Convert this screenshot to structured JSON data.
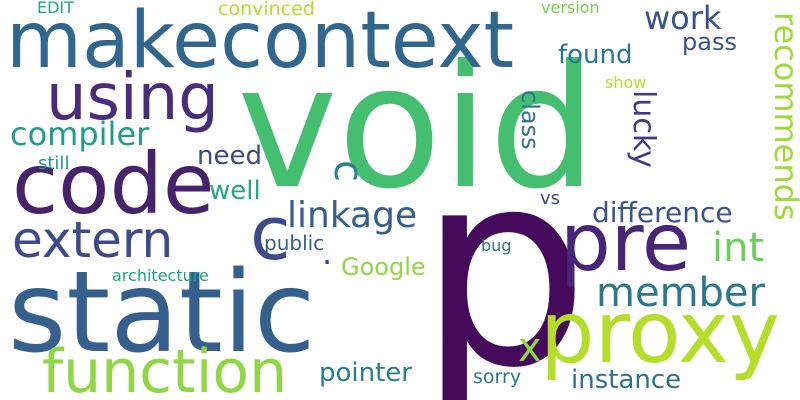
{
  "words": {
    "void": {
      "text": "void",
      "color": "#44bf70"
    },
    "p": {
      "text": "p",
      "color": "#450a5c"
    },
    "makecontext": {
      "text": "makecontext",
      "color": "#31668e"
    },
    "static": {
      "text": "static",
      "color": "#355f8d"
    },
    "code": {
      "text": "code",
      "color": "#46226c"
    },
    "proxy": {
      "text": "proxy",
      "color": "#b5de2b"
    },
    "function": {
      "text": "function",
      "color": "#8fd744"
    },
    "pre": {
      "text": "pre",
      "color": "#482677"
    },
    "using": {
      "text": "using",
      "color": "#472d7b"
    },
    "extern": {
      "text": "extern",
      "color": "#3e4a89"
    },
    "c_big": {
      "text": "c",
      "color": "#3e4a89"
    },
    "c_small": {
      "text": "c",
      "color": "#25848e"
    },
    "x": {
      "text": "x",
      "color": "#8fd744"
    },
    "linkage": {
      "text": "linkage",
      "color": "#355f8d"
    },
    "member": {
      "text": "member",
      "color": "#2a788e"
    },
    "compiler": {
      "text": "compiler",
      "color": "#1f9e89"
    },
    "work": {
      "text": "work",
      "color": "#3b528b"
    },
    "found": {
      "text": "found",
      "color": "#2a788e"
    },
    "pass": {
      "text": "pass",
      "color": "#3b528b"
    },
    "recommends": {
      "text": "recommends",
      "color": "#a0da39"
    },
    "lucky": {
      "text": "lucky",
      "color": "#443983"
    },
    "class": {
      "text": "class",
      "color": "#2c728e"
    },
    "int": {
      "text": "int",
      "color": "#6ccd5a"
    },
    "difference": {
      "text": "difference",
      "color": "#3b528b"
    },
    "need": {
      "text": "need",
      "color": "#3e4989"
    },
    "well": {
      "text": "well",
      "color": "#22a884"
    },
    "instance": {
      "text": "instance",
      "color": "#2c728e"
    },
    "pointer": {
      "text": "pointer",
      "color": "#277f8e"
    },
    "Google": {
      "text": "Google",
      "color": "#8fd744"
    },
    "public": {
      "text": "public",
      "color": "#355f8d"
    },
    "vs": {
      "text": "vs",
      "color": "#3e4989"
    },
    "sorry": {
      "text": "sorry",
      "color": "#2a788e"
    },
    "still": {
      "text": "still",
      "color": "#1f9e89"
    },
    "bug": {
      "text": "bug",
      "color": "#2c728e"
    },
    "architecture": {
      "text": "architecture",
      "color": "#1fa187"
    },
    "convinced": {
      "text": "convinced",
      "color": "#b5de2b"
    },
    "version": {
      "text": "version",
      "color": "#7ad151"
    },
    "EDIT": {
      "text": "EDIT",
      "color": "#22a884"
    },
    "show": {
      "text": "show",
      "color": "#b5de2b"
    },
    "dot": {
      "text": ".",
      "color": "#3e4989"
    }
  }
}
